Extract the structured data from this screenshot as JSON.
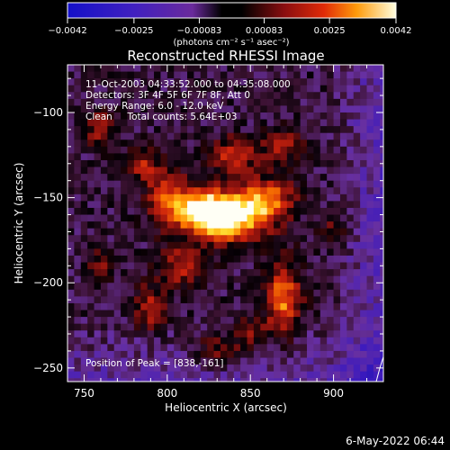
{
  "chart_data": {
    "type": "heatmap",
    "title": "Reconstructed RHESSI Image",
    "xlabel": "Heliocentric X (arcsec)",
    "ylabel": "Heliocentric Y (arcsec)",
    "xlim": [
      740,
      930
    ],
    "ylim": [
      -258,
      -72
    ],
    "x_ticks": [
      750,
      800,
      850,
      900
    ],
    "y_ticks": [
      -100,
      -150,
      -200,
      -250
    ],
    "x_tick_labels": [
      "750",
      "800",
      "850",
      "900"
    ],
    "y_tick_labels": [
      "−100",
      "−150",
      "−200",
      "−250"
    ],
    "colorbar": {
      "min": -0.0042,
      "max": 0.0042,
      "tick_values": [
        -0.0042,
        -0.0025,
        -0.00083,
        0.00083,
        0.0025,
        0.0042
      ],
      "tick_labels": [
        "−0.0042",
        "−0.0025",
        "−0.00083",
        "0.00083",
        "0.0025",
        "0.0042"
      ],
      "unit_label": "(photons cm⁻² s⁻¹ asec⁻²)"
    },
    "annotations": [
      "11-Oct-2003 04:33:52.000 to 04:35:08.000",
      "Detectors: 3F 4F 5F 6F 7F 8F, Att 0",
      "Energy Range: 6.0 - 12.0 keV",
      "Clean     Total counts: 5.64E+03"
    ],
    "peak_label": "Position of Peak = [838,-161]",
    "peak_position": [
      838,
      -161
    ],
    "colormap": [
      "#1a10b0",
      "#3a18c0",
      "#7030a8",
      "#5a1a3a",
      "#000000",
      "#7a0e10",
      "#c82010",
      "#ff7a00",
      "#ffd21c",
      "#ffffff"
    ]
  },
  "footer": {
    "date": "6-May-2022 06:44"
  }
}
